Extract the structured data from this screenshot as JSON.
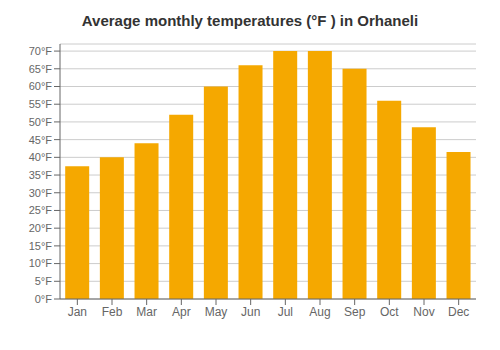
{
  "chart_data": {
    "type": "bar",
    "title": "Average monthly temperatures (°F ) in Orhaneli",
    "categories": [
      "Jan",
      "Feb",
      "Mar",
      "Apr",
      "May",
      "Jun",
      "Jul",
      "Aug",
      "Sep",
      "Oct",
      "Nov",
      "Dec"
    ],
    "values": [
      37.5,
      40,
      44,
      52,
      60,
      66,
      70,
      70,
      65,
      56,
      48.5,
      41.5
    ],
    "color": "#F5A800",
    "ylim": [
      0,
      72
    ],
    "yticks": [
      {
        "value": 0,
        "label": "0°F"
      },
      {
        "value": 5,
        "label": "5°F"
      },
      {
        "value": 10,
        "label": "10°F"
      },
      {
        "value": 15,
        "label": "15°F"
      },
      {
        "value": 20,
        "label": "20°F"
      },
      {
        "value": 25,
        "label": "25°F"
      },
      {
        "value": 30,
        "label": "30°F"
      },
      {
        "value": 35,
        "label": "35°F"
      },
      {
        "value": 40,
        "label": "40°F"
      },
      {
        "value": 45,
        "label": "45°F"
      },
      {
        "value": 50,
        "label": "50°F"
      },
      {
        "value": 55,
        "label": "55°F"
      },
      {
        "value": 60,
        "label": "60°F"
      },
      {
        "value": 65,
        "label": "65°F"
      },
      {
        "value": 70,
        "label": "70°F"
      }
    ],
    "grid": true
  }
}
